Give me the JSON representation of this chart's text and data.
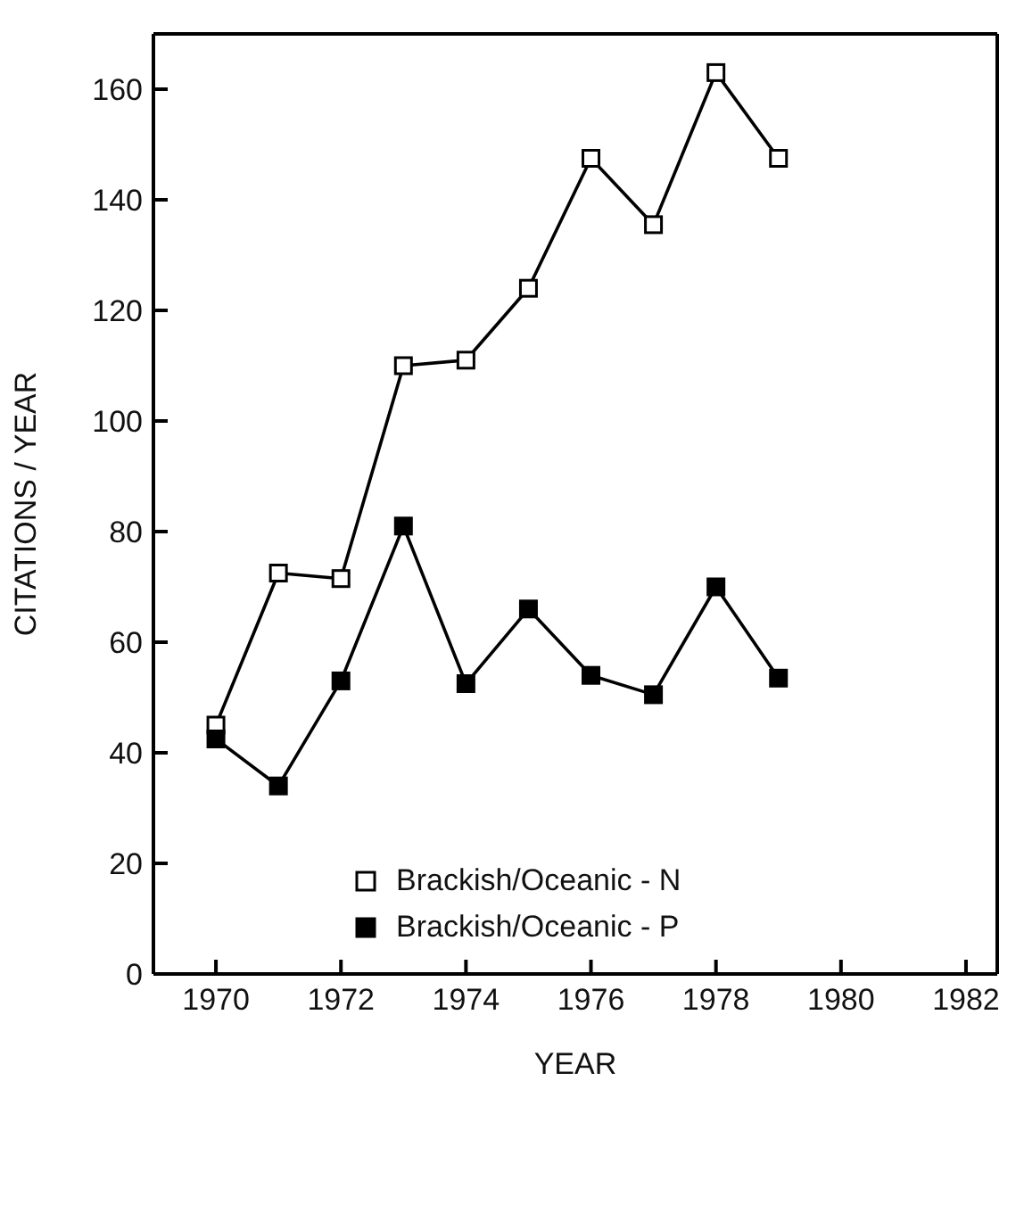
{
  "chart_data": {
    "type": "line",
    "xlabel": "YEAR",
    "ylabel": "CITATIONS / YEAR",
    "x": [
      1970,
      1971,
      1972,
      1973,
      1974,
      1975,
      1976,
      1977,
      1978,
      1979
    ],
    "series": [
      {
        "name": "Brackish/Oceanic - N",
        "color": "#000000",
        "values": [
          45,
          72.5,
          71.5,
          110,
          111,
          124,
          147.5,
          135.5,
          163,
          147.5
        ]
      },
      {
        "name": "Brackish/Oceanic - P",
        "color": "#000000",
        "values": [
          42.5,
          34,
          53,
          81,
          52.5,
          66,
          54,
          50.5,
          70,
          53.5
        ]
      }
    ],
    "xlim": [
      1969,
      1982.5
    ],
    "xticks": [
      1970,
      1972,
      1974,
      1976,
      1978,
      1980,
      1982
    ],
    "ylim": [
      0,
      170
    ],
    "yticks": [
      0,
      20,
      40,
      60,
      80,
      100,
      120,
      140,
      160
    ],
    "grid": false,
    "legend": "bottom left",
    "marker": "square",
    "line_style": "solid"
  }
}
